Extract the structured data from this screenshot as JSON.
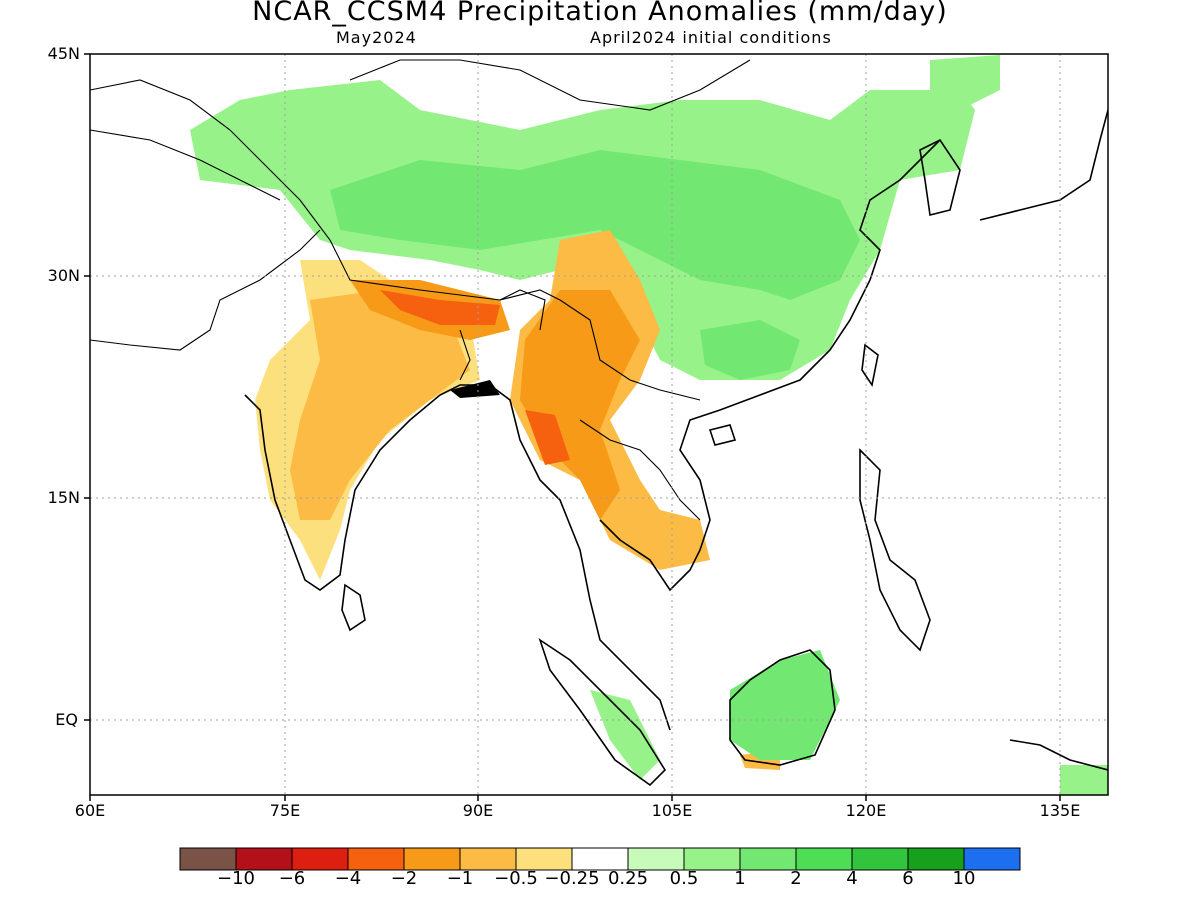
{
  "title": "NCAR_CCSM4 Precipitation Anomalies (mm/day)",
  "subtitle_month": "May2024",
  "subtitle_init": "April2024 initial conditions",
  "lat_labels": [
    "45N",
    "30N",
    "15N",
    "EQ"
  ],
  "lon_labels": [
    "60E",
    "75E",
    "90E",
    "105E",
    "120E",
    "135E"
  ],
  "colorbar": {
    "colors": [
      "#7a5346",
      "#b4101a",
      "#dc1f10",
      "#f5610f",
      "#f79a17",
      "#fbbb44",
      "#fde07e",
      "#ffffff",
      "#c7fbb9",
      "#98f28a",
      "#72e872",
      "#4ede56",
      "#32c43c",
      "#17a01d",
      "#1c6fee"
    ],
    "tick_labels": [
      "−10",
      "−6",
      "−4",
      "−2",
      "−1",
      "−0.5",
      "−0.25",
      "0.25",
      "0.5",
      "1",
      "2",
      "4",
      "6",
      "10"
    ]
  }
}
